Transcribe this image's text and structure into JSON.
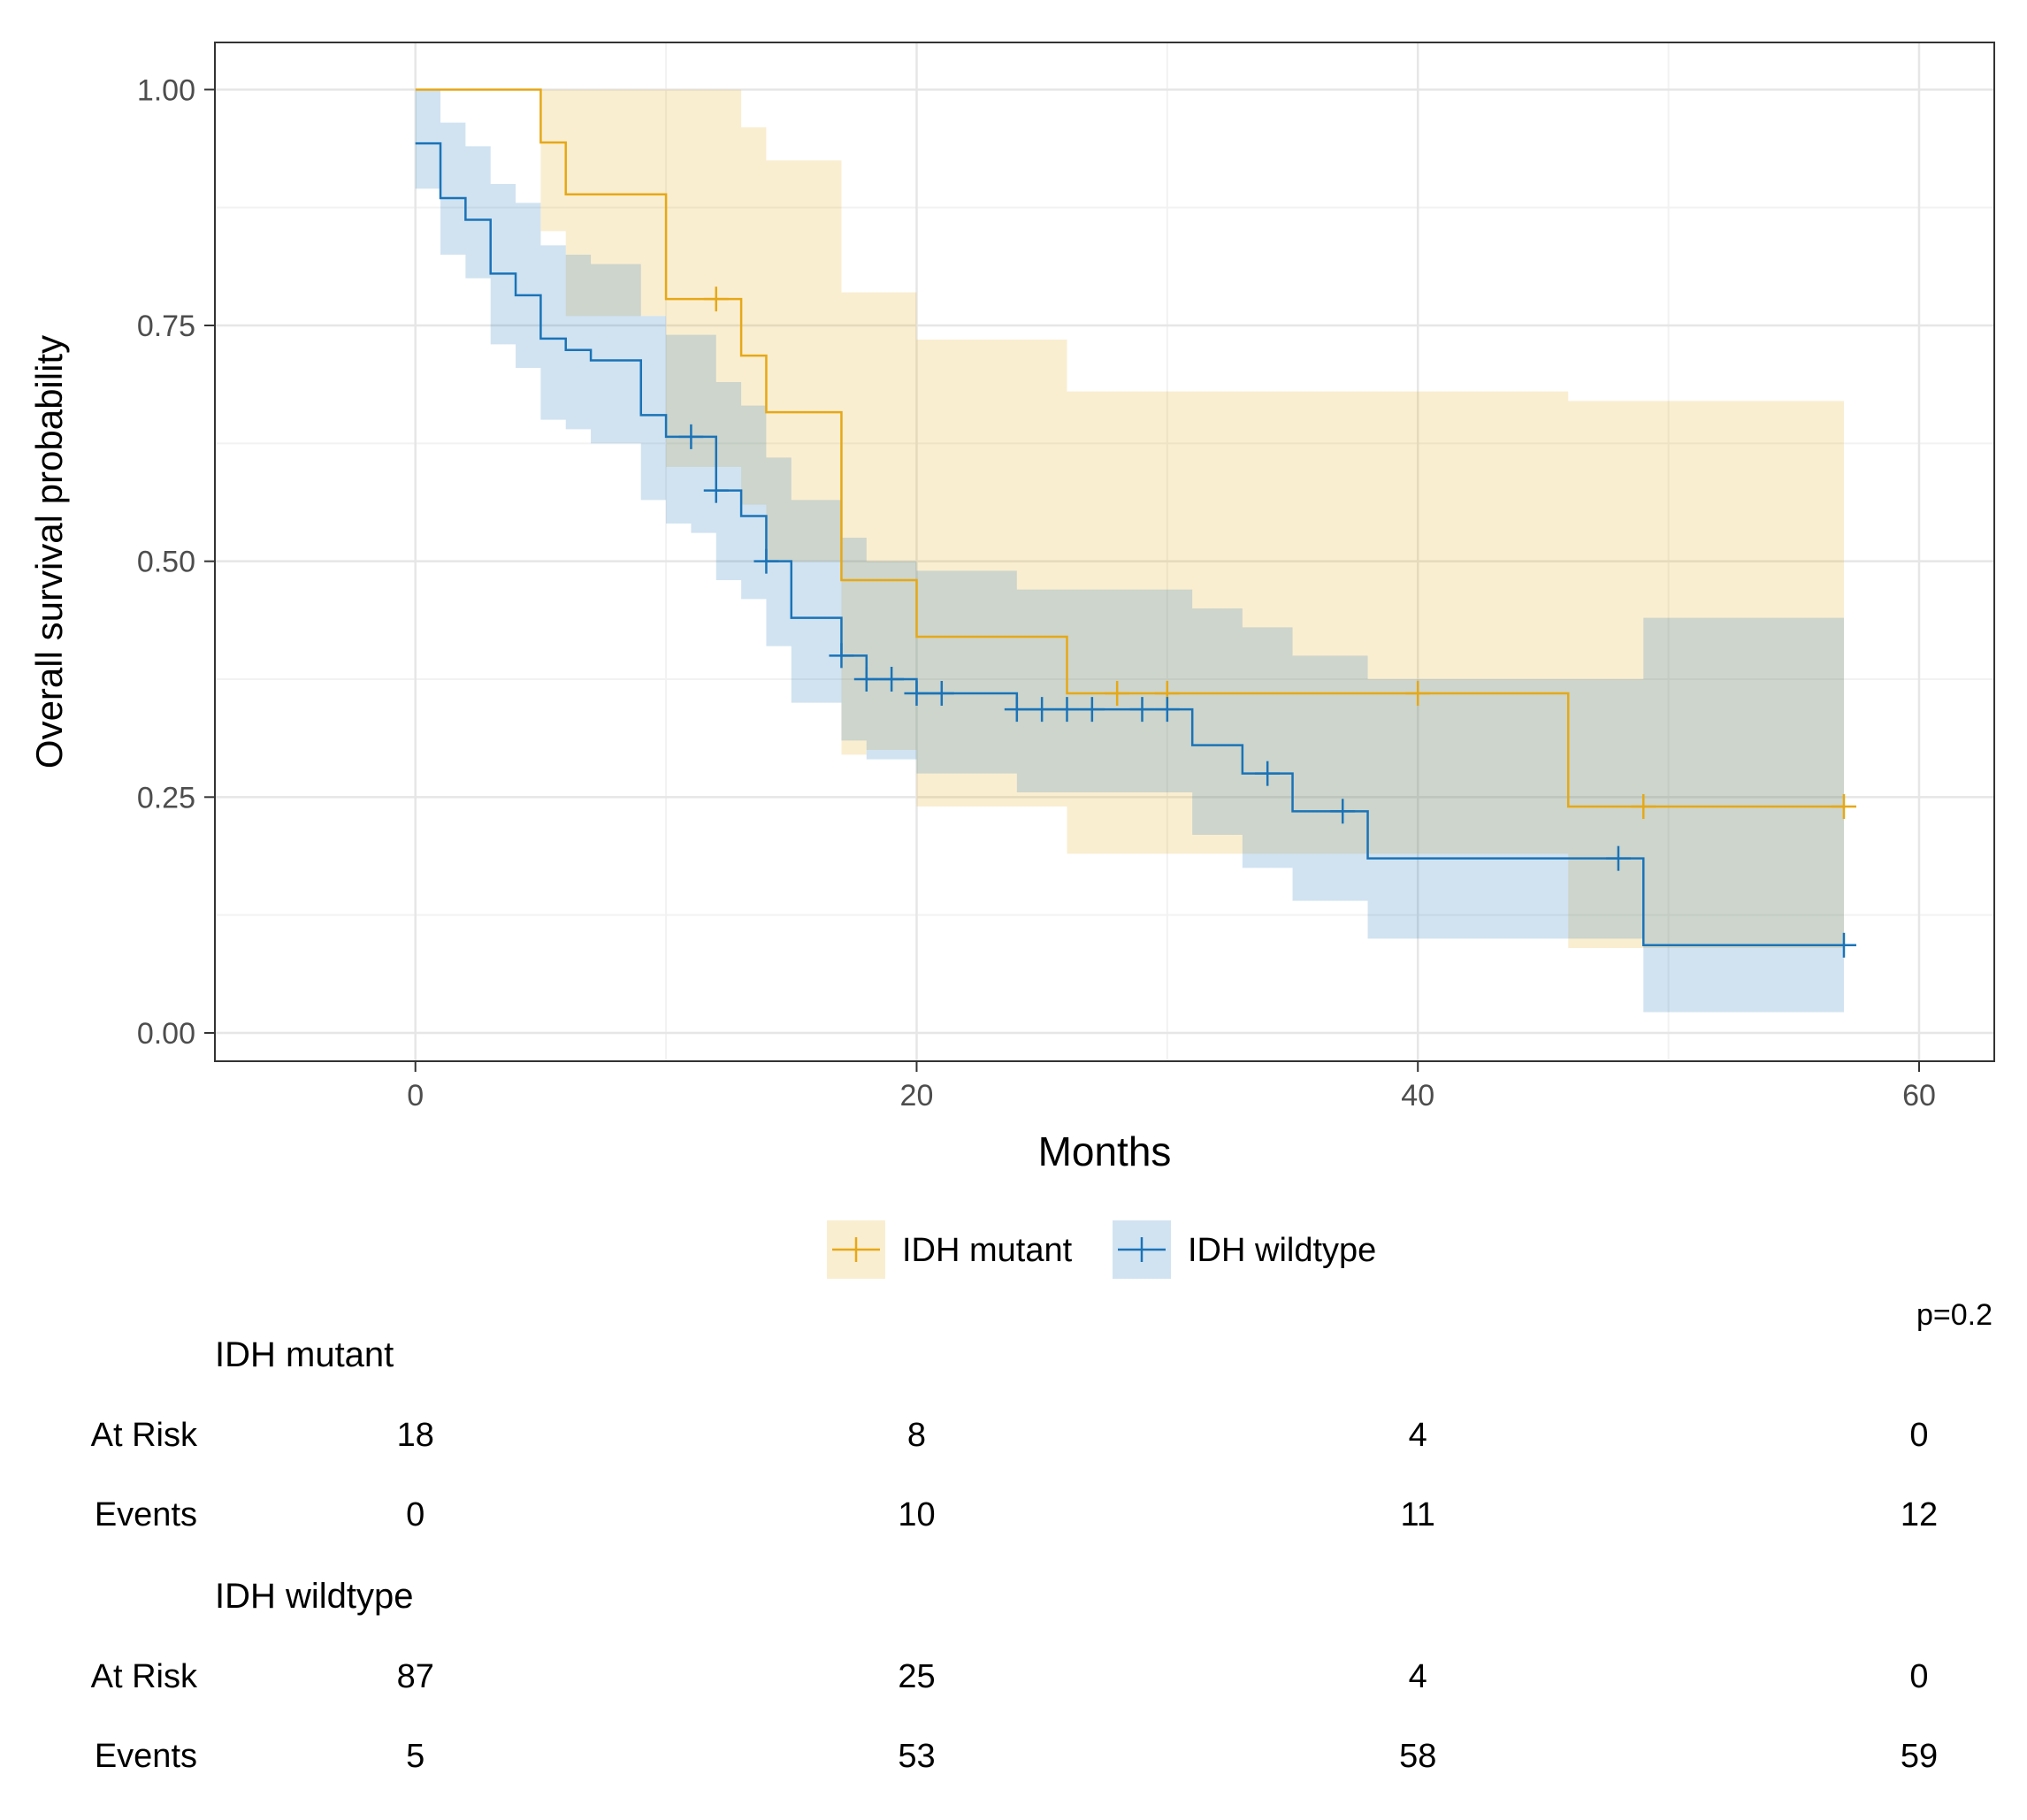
{
  "chart_data": {
    "type": "line",
    "subtype": "kaplan-meier",
    "xlabel": "Months",
    "ylabel": "Overall survival probability",
    "xlim": [
      -8,
      63
    ],
    "ylim": [
      -0.03,
      1.05
    ],
    "x_ticks": [
      0,
      20,
      40,
      60
    ],
    "x_tick_labels": [
      "0",
      "20",
      "40",
      "60"
    ],
    "y_ticks": [
      0,
      0.25,
      0.5,
      0.75,
      1
    ],
    "y_tick_labels": [
      "0.00",
      "0.25",
      "0.50",
      "0.75",
      "1.00"
    ],
    "grid": true,
    "legend_position": "bottom",
    "p_value_label": "p=0.2",
    "series": [
      {
        "name": "IDH mutant",
        "color": "#E6A817",
        "fill": "#FDF0CC",
        "steps": [
          [
            0,
            1.0
          ],
          [
            5,
            0.944
          ],
          [
            6,
            0.889
          ],
          [
            10,
            0.778
          ],
          [
            13,
            0.718
          ],
          [
            14,
            0.658
          ],
          [
            17,
            0.48
          ],
          [
            20,
            0.42
          ],
          [
            26,
            0.36
          ],
          [
            46,
            0.24
          ],
          [
            57,
            0.24
          ]
        ],
        "band": [
          [
            0,
            1.0,
            1.0
          ],
          [
            5,
            0.85,
            1.0
          ],
          [
            6,
            0.76,
            1.0
          ],
          [
            10,
            0.6,
            1.0
          ],
          [
            13,
            0.56,
            0.96
          ],
          [
            14,
            0.5,
            0.925
          ],
          [
            17,
            0.295,
            0.785
          ],
          [
            18,
            0.3,
            0.785
          ],
          [
            20,
            0.24,
            0.735
          ],
          [
            26,
            0.19,
            0.68
          ],
          [
            46,
            0.09,
            0.67
          ],
          [
            57,
            0.09,
            0.67
          ]
        ],
        "censors": [
          [
            12,
            0.778
          ],
          [
            28,
            0.36
          ],
          [
            30,
            0.36
          ],
          [
            40,
            0.36
          ],
          [
            49,
            0.24
          ],
          [
            57,
            0.24
          ]
        ]
      },
      {
        "name": "IDH wildtype",
        "color": "#1A73B8",
        "fill": "#CCE4F2",
        "steps": [
          [
            0,
            0.943
          ],
          [
            1,
            0.885
          ],
          [
            2,
            0.862
          ],
          [
            3,
            0.805
          ],
          [
            4,
            0.782
          ],
          [
            5,
            0.736
          ],
          [
            6,
            0.724
          ],
          [
            7,
            0.713
          ],
          [
            9,
            0.655
          ],
          [
            10,
            0.632
          ],
          [
            12,
            0.575
          ],
          [
            13,
            0.548
          ],
          [
            14,
            0.5
          ],
          [
            15,
            0.44
          ],
          [
            17,
            0.4
          ],
          [
            18,
            0.375
          ],
          [
            20,
            0.36
          ],
          [
            24,
            0.343
          ],
          [
            31,
            0.305
          ],
          [
            33,
            0.275
          ],
          [
            35,
            0.235
          ],
          [
            38,
            0.185
          ],
          [
            49,
            0.093
          ],
          [
            57,
            0.093
          ]
        ],
        "band": [
          [
            0,
            0.895,
            1.0
          ],
          [
            1,
            0.825,
            0.965
          ],
          [
            2,
            0.8,
            0.94
          ],
          [
            3,
            0.73,
            0.9
          ],
          [
            4,
            0.705,
            0.88
          ],
          [
            5,
            0.65,
            0.835
          ],
          [
            6,
            0.64,
            0.825
          ],
          [
            7,
            0.625,
            0.815
          ],
          [
            9,
            0.565,
            0.76
          ],
          [
            10,
            0.54,
            0.74
          ],
          [
            11,
            0.53,
            0.74
          ],
          [
            12,
            0.48,
            0.69
          ],
          [
            13,
            0.46,
            0.665
          ],
          [
            14,
            0.41,
            0.61
          ],
          [
            15,
            0.35,
            0.565
          ],
          [
            17,
            0.31,
            0.525
          ],
          [
            18,
            0.29,
            0.5
          ],
          [
            20,
            0.275,
            0.49
          ],
          [
            24,
            0.255,
            0.47
          ],
          [
            31,
            0.21,
            0.45
          ],
          [
            33,
            0.175,
            0.43
          ],
          [
            35,
            0.14,
            0.4
          ],
          [
            38,
            0.1,
            0.375
          ],
          [
            49,
            0.022,
            0.44
          ],
          [
            57,
            0.022,
            0.44
          ]
        ],
        "censors": [
          [
            11,
            0.632
          ],
          [
            12,
            0.575
          ],
          [
            14,
            0.5
          ],
          [
            17,
            0.4
          ],
          [
            18,
            0.375
          ],
          [
            19,
            0.375
          ],
          [
            20,
            0.36
          ],
          [
            21,
            0.36
          ],
          [
            24,
            0.343
          ],
          [
            25,
            0.343
          ],
          [
            26,
            0.343
          ],
          [
            27,
            0.343
          ],
          [
            29,
            0.343
          ],
          [
            30,
            0.343
          ],
          [
            34,
            0.275
          ],
          [
            37,
            0.235
          ],
          [
            48,
            0.185
          ],
          [
            57,
            0.093
          ]
        ]
      }
    ],
    "risk_table": {
      "time_points": [
        0,
        20,
        40,
        60
      ],
      "groups": [
        {
          "name": "IDH mutant",
          "at_risk_label": "At Risk",
          "events_label": "Events",
          "at_risk": [
            "18",
            "8",
            "4",
            "0"
          ],
          "events": [
            "0",
            "10",
            "11",
            "12"
          ]
        },
        {
          "name": "IDH wildtype",
          "at_risk_label": "At Risk",
          "events_label": "Events",
          "at_risk": [
            "87",
            "25",
            "4",
            "0"
          ],
          "events": [
            "5",
            "53",
            "58",
            "59"
          ]
        }
      ]
    }
  }
}
